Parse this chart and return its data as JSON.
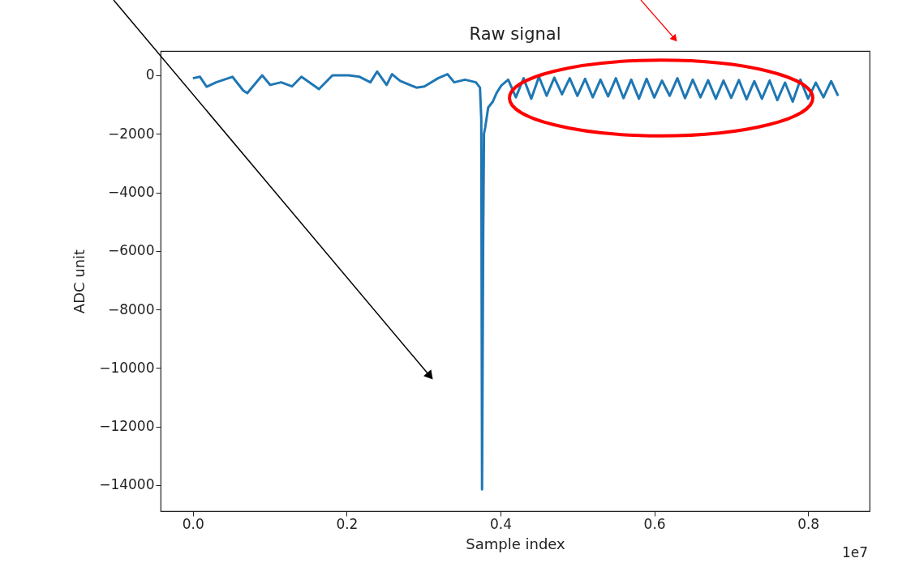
{
  "chart_data": {
    "type": "line",
    "title": "Raw signal",
    "xlabel": "Sample index",
    "ylabel": "ADC unit",
    "annotations": [
      "1e7"
    ],
    "xlim": [
      -0.042,
      0.88
    ],
    "xticks": [
      {
        "value": 0,
        "label": "0.0"
      },
      0.2,
      0.4,
      0.6,
      0.8
    ],
    "ylim": [
      -14890,
      830
    ],
    "yticks": [
      0,
      -2000,
      -4000,
      -6000,
      -8000,
      -10000,
      -12000,
      -14000
    ],
    "grid": false,
    "marker": "none",
    "line_style": "solid",
    "series": [
      {
        "color": "#1f77b4",
        "x": [
          0,
          0.00915,
          0.0179,
          0.03026,
          0.05137,
          0.06543,
          0.07071,
          0.09006,
          0.1006,
          0.1147,
          0.1288,
          0.1411,
          0.1639,
          0.1815,
          0.2026,
          0.2167,
          0.2308,
          0.2396,
          0.2519,
          0.2589,
          0.2695,
          0.2906,
          0.3011,
          0.3187,
          0.331,
          0.3398,
          0.3539,
          0.368,
          0.3733,
          0.375,
          0.376,
          0.3775,
          0.3785,
          0.38,
          0.384,
          0.39,
          0.395,
          0.401,
          0.41,
          0.42,
          0.43,
          0.44,
          0.45,
          0.46,
          0.47,
          0.48,
          0.49,
          0.5,
          0.51,
          0.52,
          0.53,
          0.54,
          0.55,
          0.56,
          0.57,
          0.58,
          0.59,
          0.6,
          0.61,
          0.62,
          0.63,
          0.64,
          0.65,
          0.66,
          0.67,
          0.68,
          0.69,
          0.7,
          0.71,
          0.72,
          0.73,
          0.74,
          0.75,
          0.76,
          0.77,
          0.78,
          0.79,
          0.8,
          0.81,
          0.82,
          0.83,
          0.839
        ],
        "values": [
          -100,
          -50,
          -390,
          -240,
          -50,
          -520,
          -610,
          0,
          -330,
          -240,
          -380,
          -50,
          -470,
          0,
          0,
          -50,
          -240,
          130,
          -330,
          40,
          -190,
          -420,
          -380,
          -100,
          40,
          -240,
          -150,
          -240,
          -420,
          -1500,
          -14150,
          -5500,
          -2000,
          -1800,
          -1100,
          -900,
          -600,
          -350,
          -150,
          -750,
          -100,
          -800,
          -50,
          -700,
          -80,
          -650,
          -100,
          -700,
          -120,
          -750,
          -150,
          -720,
          -100,
          -780,
          -150,
          -800,
          -120,
          -760,
          -180,
          -700,
          -100,
          -780,
          -150,
          -750,
          -170,
          -800,
          -180,
          -770,
          -160,
          -820,
          -200,
          -800,
          -180,
          -850,
          -250,
          -900,
          -150,
          -800,
          -250,
          -750,
          -200,
          -700
        ]
      }
    ]
  }
}
